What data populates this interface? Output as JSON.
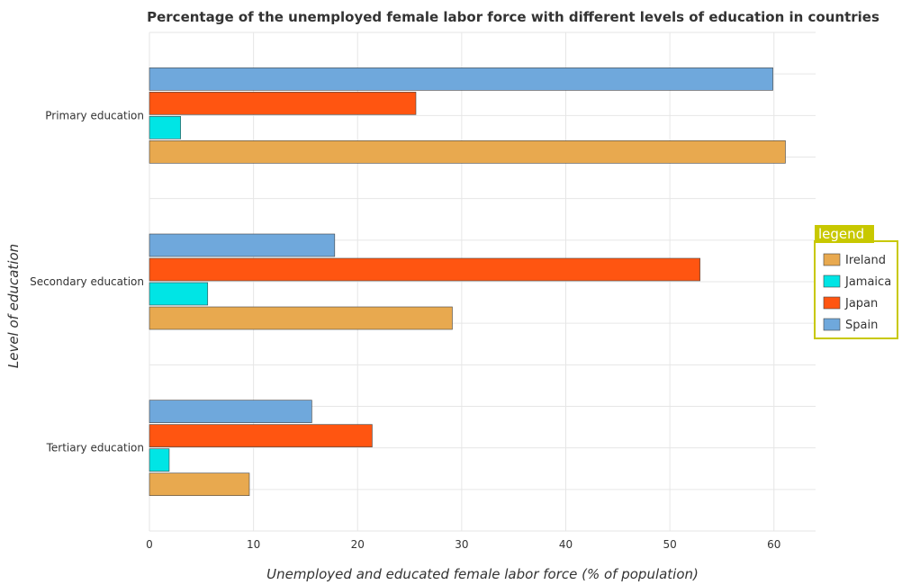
{
  "chart_data": {
    "type": "bar",
    "orientation": "horizontal",
    "title": "Percentage of the unemployed female labor force with different levels of education in countries",
    "xlabel": "Unemployed and educated female labor force (% of population)",
    "ylabel": "Level of education",
    "xlim": [
      0,
      64
    ],
    "xticks": [
      0,
      10,
      20,
      30,
      40,
      50,
      60
    ],
    "grid": true,
    "legend_title": "legend",
    "legend_position": "right",
    "categories": [
      "Primary education",
      "Secondary education",
      "Tertiary education"
    ],
    "series": [
      {
        "name": "Ireland",
        "color": "#e8a94f",
        "values": [
          61.1,
          29.1,
          9.6
        ]
      },
      {
        "name": "Jamaica",
        "color": "#00e5e5",
        "values": [
          3.0,
          5.6,
          1.9
        ]
      },
      {
        "name": "Japan",
        "color": "#ff5511",
        "values": [
          25.6,
          52.9,
          21.4
        ]
      },
      {
        "name": "Spain",
        "color": "#6fa8dc",
        "values": [
          59.9,
          17.8,
          15.6
        ]
      }
    ]
  }
}
